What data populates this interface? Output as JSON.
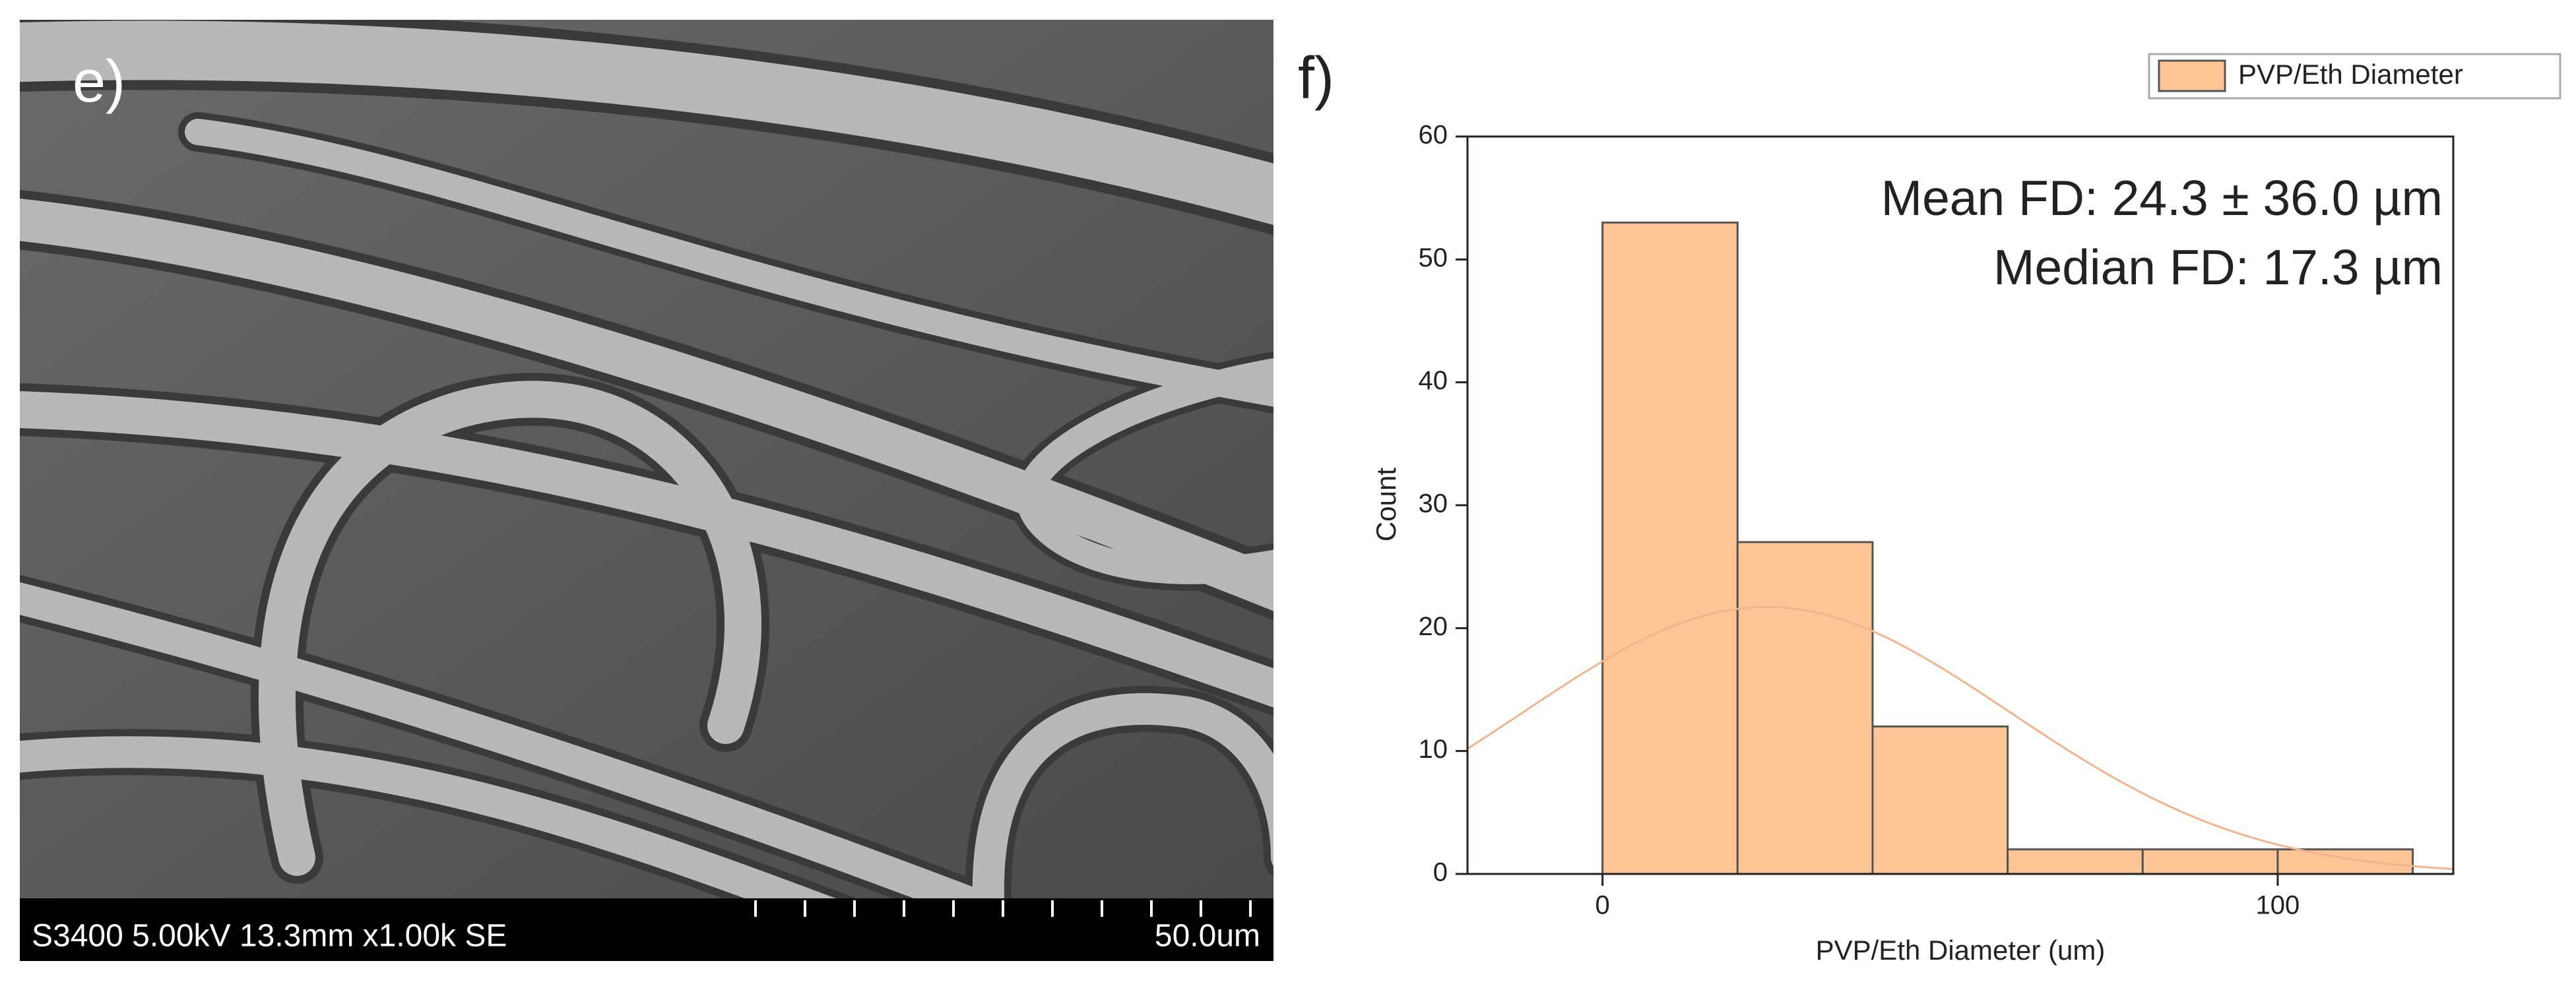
{
  "panels": {
    "left_label": "e)",
    "right_label": "f)",
    "sem_info": "S3400 5.00kV 13.3mm x1.00k SE",
    "scale_bar": "50.0um"
  },
  "chart_data": {
    "type": "histogram",
    "series": [
      {
        "name": "PVP/Eth Diameter",
        "color": "#fdc596",
        "values": [
          53,
          27,
          12,
          2,
          2,
          2
        ]
      }
    ],
    "bins": [
      0,
      20,
      40,
      60,
      80,
      100,
      120
    ],
    "annotations": [
      "Mean FD: 24.3 ± 36.0 µm",
      "Median FD: 17.3 µm"
    ],
    "fit_curve": {
      "mean": 24.3,
      "sd": 36.0,
      "color": "#f2b48e"
    },
    "xlabel": "PVP/Eth Diameter (um)",
    "ylabel": "Count",
    "xlim": [
      -20,
      126
    ],
    "ylim": [
      0,
      60
    ],
    "xticks": [
      0,
      100
    ],
    "yticks": [
      0,
      10,
      20,
      30,
      40,
      50,
      60
    ],
    "legend": "upper right"
  }
}
